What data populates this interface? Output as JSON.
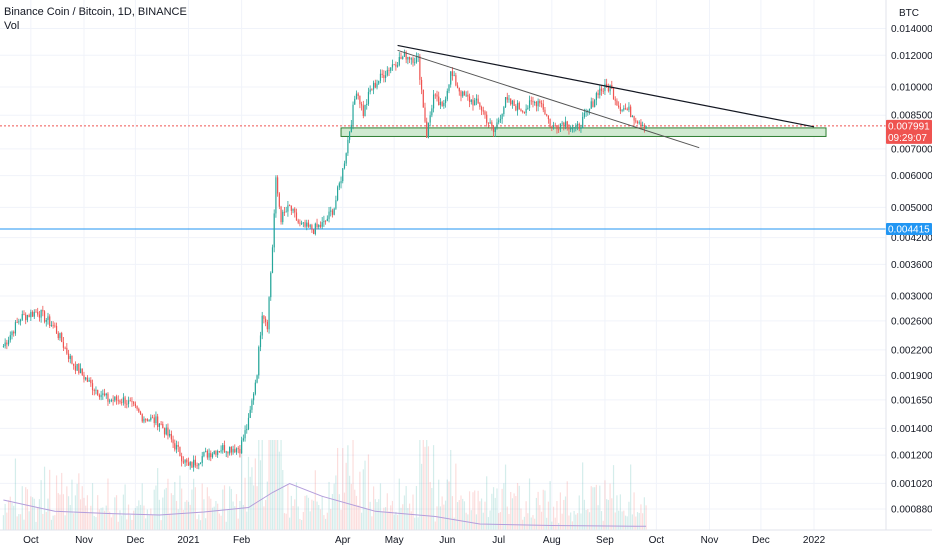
{
  "header": {
    "title": "Binance Coin / Bitcoin, 1D, BINANCE",
    "volume_label": "Vol",
    "currency": "BTC"
  },
  "colors": {
    "up": "#26a69a",
    "down": "#ef5350",
    "price_line": "#ef5350",
    "support_line": "#2196f3",
    "zone_fill": "#c8e6c9",
    "zone_stroke": "#2e7d32",
    "trendline_upper": "#131722",
    "trendline_lower": "#555555",
    "volume_ma": "#b39ddb"
  },
  "chart_data": {
    "type": "candlestick",
    "title": "Binance Coin / Bitcoin, 1D, BINANCE",
    "y_scale": "log",
    "ylim": [
      0.00078,
      0.0165
    ],
    "y_ticks": [
      "0.014000",
      "0.012000",
      "0.010000",
      "0.008500",
      "0.007000",
      "0.006000",
      "0.005000",
      "0.004200",
      "0.003600",
      "0.003000",
      "0.002600",
      "0.002200",
      "0.001900",
      "0.001650",
      "0.001400",
      "0.001200",
      "0.001020",
      "0.000880"
    ],
    "x_ticks": [
      {
        "label": "Oct",
        "date": "2020-10-01"
      },
      {
        "label": "Nov",
        "date": "2020-11-01"
      },
      {
        "label": "Dec",
        "date": "2020-12-01"
      },
      {
        "label": "2021",
        "date": "2021-01-01"
      },
      {
        "label": "Feb",
        "date": "2021-02-01"
      },
      {
        "label": "Apr",
        "date": "2021-04-01"
      },
      {
        "label": "May",
        "date": "2021-05-01"
      },
      {
        "label": "Jun",
        "date": "2021-06-01"
      },
      {
        "label": "Jul",
        "date": "2021-07-01"
      },
      {
        "label": "Aug",
        "date": "2021-08-01"
      },
      {
        "label": "Sep",
        "date": "2021-09-01"
      },
      {
        "label": "Oct",
        "date": "2021-10-01"
      },
      {
        "label": "Nov",
        "date": "2021-11-01"
      },
      {
        "label": "Dec",
        "date": "2021-12-01"
      },
      {
        "label": "2022",
        "date": "2022-01-01"
      }
    ],
    "price_path": [
      [
        "2020-09-15",
        0.00225
      ],
      [
        "2020-09-25",
        0.00265
      ],
      [
        "2020-10-05",
        0.00275
      ],
      [
        "2020-10-15",
        0.0025
      ],
      [
        "2020-10-25",
        0.00205
      ],
      [
        "2020-11-05",
        0.0018
      ],
      [
        "2020-11-15",
        0.00165
      ],
      [
        "2020-11-25",
        0.00165
      ],
      [
        "2020-12-05",
        0.0015
      ],
      [
        "2020-12-15",
        0.00145
      ],
      [
        "2020-12-25",
        0.00125
      ],
      [
        "2021-01-01",
        0.00112
      ],
      [
        "2021-01-10",
        0.0012
      ],
      [
        "2021-01-20",
        0.00125
      ],
      [
        "2021-01-31",
        0.00125
      ],
      [
        "2021-02-05",
        0.00145
      ],
      [
        "2021-02-10",
        0.00195
      ],
      [
        "2021-02-13",
        0.00275
      ],
      [
        "2021-02-16",
        0.00255
      ],
      [
        "2021-02-19",
        0.004
      ],
      [
        "2021-02-21",
        0.0058
      ],
      [
        "2021-02-24",
        0.0047
      ],
      [
        "2021-03-01",
        0.005
      ],
      [
        "2021-03-07",
        0.0045
      ],
      [
        "2021-03-15",
        0.0044
      ],
      [
        "2021-03-21",
        0.00455
      ],
      [
        "2021-03-27",
        0.005
      ],
      [
        "2021-04-01",
        0.0062
      ],
      [
        "2021-04-05",
        0.0078
      ],
      [
        "2021-04-09",
        0.0099
      ],
      [
        "2021-04-13",
        0.0086
      ],
      [
        "2021-04-17",
        0.0098
      ],
      [
        "2021-04-25",
        0.0108
      ],
      [
        "2021-05-01",
        0.0115
      ],
      [
        "2021-05-08",
        0.012
      ],
      [
        "2021-05-15",
        0.0117
      ],
      [
        "2021-05-18",
        0.009
      ],
      [
        "2021-05-20",
        0.0076
      ],
      [
        "2021-05-24",
        0.0095
      ],
      [
        "2021-05-29",
        0.0088
      ],
      [
        "2021-06-03",
        0.0108
      ],
      [
        "2021-06-10",
        0.0095
      ],
      [
        "2021-06-20",
        0.009
      ],
      [
        "2021-06-28",
        0.0077
      ],
      [
        "2021-07-05",
        0.0092
      ],
      [
        "2021-07-15",
        0.0088
      ],
      [
        "2021-07-25",
        0.0093
      ],
      [
        "2021-08-01",
        0.0079
      ],
      [
        "2021-08-08",
        0.0082
      ],
      [
        "2021-08-15",
        0.0078
      ],
      [
        "2021-08-22",
        0.0086
      ],
      [
        "2021-08-28",
        0.0098
      ],
      [
        "2021-09-04",
        0.01
      ],
      [
        "2021-09-09",
        0.009
      ],
      [
        "2021-09-15",
        0.0087
      ],
      [
        "2021-09-20",
        0.0083
      ],
      [
        "2021-09-25",
        0.00799
      ]
    ],
    "volume_ma_path": [
      [
        "2020-09-15",
        0.4
      ],
      [
        "2020-10-15",
        0.25
      ],
      [
        "2020-11-15",
        0.22
      ],
      [
        "2020-12-15",
        0.2
      ],
      [
        "2021-01-10",
        0.24
      ],
      [
        "2021-02-05",
        0.3
      ],
      [
        "2021-02-19",
        0.5
      ],
      [
        "2021-03-01",
        0.62
      ],
      [
        "2021-03-20",
        0.45
      ],
      [
        "2021-04-20",
        0.25
      ],
      [
        "2021-05-25",
        0.18
      ],
      [
        "2021-06-20",
        0.08
      ],
      [
        "2021-08-01",
        0.06
      ],
      [
        "2021-09-25",
        0.05
      ]
    ],
    "zone": {
      "low": 0.00752,
      "high": 0.0079,
      "start": "2021-03-31",
      "end": "2022-01-08"
    },
    "trendlines": [
      {
        "name": "upper",
        "from": [
          "2021-05-03",
          0.0127
        ],
        "to": [
          "2022-01-01",
          0.00795
        ]
      },
      {
        "name": "lower",
        "from": [
          "2021-05-03",
          0.01235
        ],
        "to": [
          "2021-10-26",
          0.00705
        ]
      }
    ],
    "horizontal_line": {
      "value": 0.004415,
      "label": "0.004415"
    },
    "last_price": {
      "value": 0.007991,
      "label": "0.007991",
      "countdown": "09:29:07"
    },
    "x_range": [
      "2020-09-13",
      "2022-02-12"
    ]
  }
}
